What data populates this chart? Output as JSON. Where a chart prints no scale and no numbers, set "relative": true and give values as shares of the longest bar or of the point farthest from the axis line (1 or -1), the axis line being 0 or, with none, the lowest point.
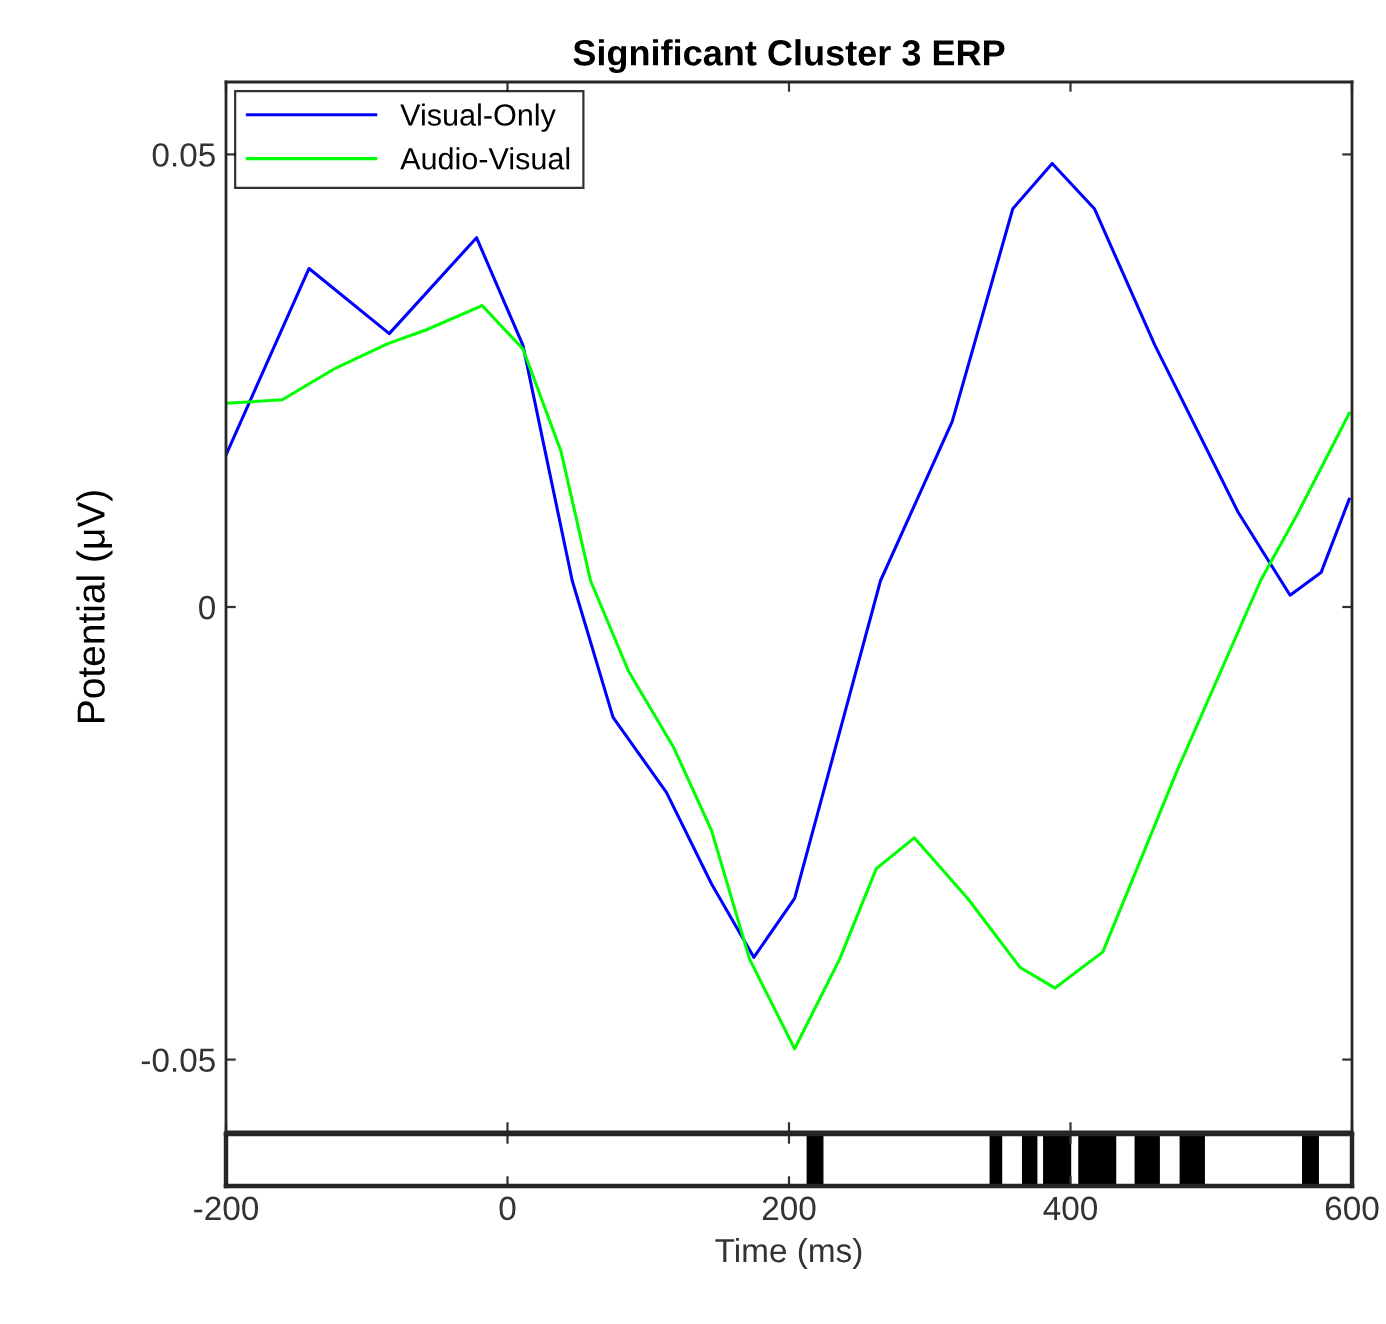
{
  "chart_data": [
    {
      "type": "line",
      "title": "Significant Cluster 3 ERP",
      "ylabel": "Potential (μV)",
      "xlim": [
        -200,
        600
      ],
      "xticks": [
        -200,
        0,
        200,
        400,
        600
      ],
      "ylim": [
        -0.058,
        0.058
      ],
      "yticks": [
        -0.05,
        0,
        0.05
      ],
      "tick_labels": "y",
      "legend": "top left",
      "grid": false,
      "series": [
        {
          "name": "Visual-Only",
          "color": "#0000ff",
          "x": [
            -200,
            -141,
            -84,
            -22,
            11,
            46,
            75,
            113,
            145,
            175,
            204,
            236,
            265,
            316,
            359,
            387,
            417,
            460,
            519,
            556,
            578,
            598
          ],
          "values": [
            0.0168,
            0.0374,
            0.0302,
            0.0408,
            0.0289,
            0.0029,
            -0.0122,
            -0.0205,
            -0.0306,
            -0.0387,
            -0.0322,
            -0.0138,
            0.0029,
            0.0205,
            0.044,
            0.049,
            0.044,
            0.0289,
            0.0105,
            0.0013,
            0.0038,
            0.0119
          ]
        },
        {
          "name": "Audio-Visual",
          "color": "#00ff00",
          "x": [
            -200,
            -160,
            -122,
            -85,
            -58,
            -18,
            11,
            38,
            59,
            86,
            118,
            145,
            172,
            204,
            236,
            262,
            289,
            327,
            364,
            389,
            423,
            476,
            535,
            562,
            598
          ],
          "values": [
            0.0225,
            0.0229,
            0.0264,
            0.0291,
            0.0306,
            0.0333,
            0.0285,
            0.0172,
            0.0029,
            -0.0071,
            -0.0155,
            -0.0247,
            -0.0389,
            -0.0488,
            -0.0389,
            -0.0289,
            -0.0255,
            -0.0322,
            -0.0398,
            -0.0421,
            -0.0381,
            -0.018,
            0.0029,
            0.0105,
            0.0214
          ]
        }
      ]
    },
    {
      "type": "area",
      "relative": true,
      "xlabel": "Time (ms)",
      "xlim": [
        -200,
        600
      ],
      "xticks": [
        -200,
        0,
        200,
        400,
        600
      ],
      "tick_labels": "x",
      "series": [
        {
          "color": "#000000",
          "x": [
            -200,
            213,
            213,
            224,
            224,
            343,
            343,
            351,
            351,
            366,
            366,
            376,
            376,
            381,
            381,
            400,
            400,
            406,
            406,
            432,
            432,
            446,
            446,
            463,
            463,
            478,
            478,
            495,
            495,
            565,
            565,
            576,
            576,
            600
          ],
          "values": [
            0,
            0,
            1,
            1,
            0,
            0,
            1,
            1,
            0,
            0,
            1,
            1,
            0,
            0,
            1,
            1,
            0,
            0,
            1,
            1,
            0,
            0,
            1,
            1,
            0,
            0,
            1,
            1,
            0,
            0,
            1,
            1,
            0,
            0
          ]
        }
      ]
    }
  ]
}
